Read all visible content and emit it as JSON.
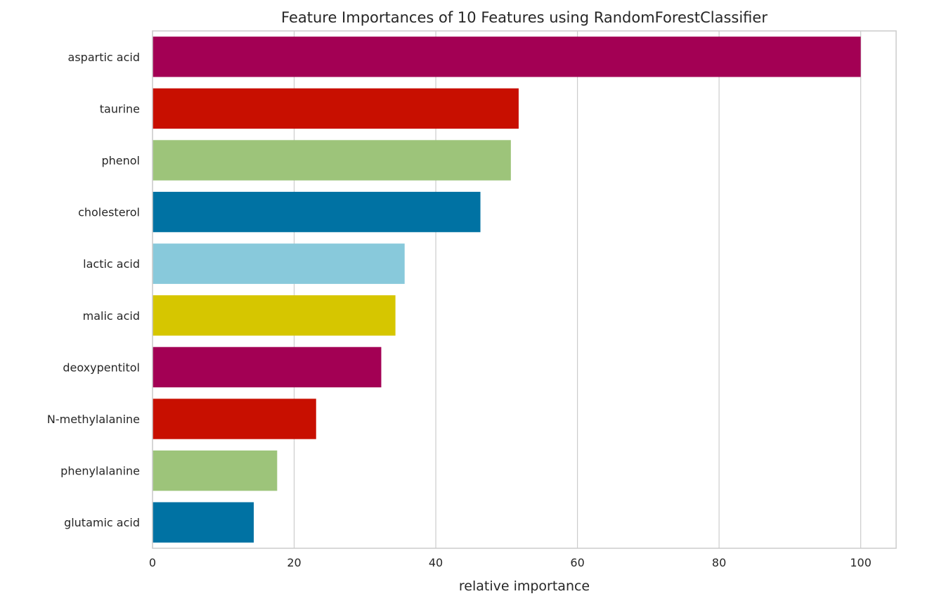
{
  "chart_data": {
    "type": "bar",
    "orientation": "horizontal",
    "title": "Feature Importances of 10 Features using RandomForestClassifier",
    "xlabel": "relative importance",
    "ylabel": "",
    "xlim": [
      0,
      105
    ],
    "xticks": [
      0,
      20,
      40,
      60,
      80,
      100
    ],
    "grid": "vertical",
    "legend": "none",
    "categories": [
      "aspartic acid",
      "taurine",
      "phenol",
      "cholesterol",
      "lactic acid",
      "malic acid",
      "deoxypentitol",
      "N-methylalanine",
      "phenylalanine",
      "glutamic acid"
    ],
    "values": [
      100,
      51.7,
      50.6,
      46.3,
      35.6,
      34.3,
      32.3,
      23.1,
      17.6,
      14.3
    ],
    "colors": [
      "#a30054",
      "#c80f00",
      "#9dc47a",
      "#0072a3",
      "#88c9db",
      "#d6c600",
      "#a30054",
      "#c80f00",
      "#9dc47a",
      "#0072a3"
    ]
  }
}
